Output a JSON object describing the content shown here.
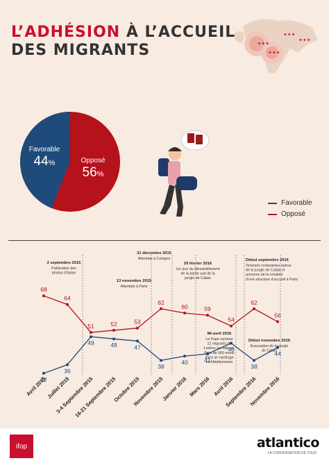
{
  "title": {
    "line1_a": "L’ADHÉSION",
    "line1_b": " À L’ACCUEIL",
    "line2": "DES MIGRANTS"
  },
  "pie": {
    "favorable_label": "Favorable",
    "favorable_value": "44",
    "favorable_unit": "%",
    "oppose_label": "Opposé",
    "oppose_value": "56",
    "oppose_unit": "%",
    "colors": {
      "favorable": "#1e4b7a",
      "oppose": "#b5121b"
    }
  },
  "legend": {
    "favorable": "Favorable",
    "oppose": "Opposé"
  },
  "chart_data": {
    "type": "line",
    "categories": [
      "Avril 2015",
      "Juillet 2015",
      "3-4 Septembre 2015",
      "16-21 Septembre 2015",
      "Octobre 2015",
      "Novembre 2015",
      "Janvier 2016",
      "Mars 2016",
      "Avril 2016",
      "Septembre 2016",
      "Novembre 2016"
    ],
    "series": [
      {
        "name": "Favorable",
        "color": "#1e4b7a",
        "values": [
          32,
          36,
          49,
          48,
          47,
          38,
          40,
          41,
          46,
          38,
          44
        ]
      },
      {
        "name": "Opposé",
        "color": "#b5121b",
        "values": [
          68,
          64,
          51,
          52,
          53,
          62,
          60,
          59,
          54,
          62,
          56
        ]
      }
    ],
    "annotations": [
      {
        "title": "2 septembre 2015",
        "text": [
          "Publication des",
          "photos d’Aylan"
        ]
      },
      {
        "title": "13 novembre 2015",
        "text": [
          "Attentats à Paris"
        ]
      },
      {
        "title": "31 décembre 2015",
        "text": [
          "Attentats à Cologne"
        ]
      },
      {
        "title": "29 février 2016",
        "text": [
          "1er jour du démantèlement",
          "de la partie sud de la",
          "jungle de Calais"
        ]
      },
      {
        "title": "Mi-avril 2016",
        "text": [
          "Le Pape ramène",
          "12 migrants de",
          "Lesbos au Vatican.",
          "Près de 500 morts",
          "dans un naufrage",
          "en Méditerranée"
        ]
      },
      {
        "title": "Début septembre 2016",
        "text": [
          "Tensions croissantes autour",
          "de la jungle de Calais et",
          "annonce de la création",
          "d’une structure d’accueil à Paris"
        ]
      },
      {
        "title": "Début novembre 2016",
        "text": [
          "Évacuation de la jungle",
          "de Calais"
        ]
      }
    ]
  },
  "footer": {
    "ifop": "ifop",
    "brand": "atlantico",
    "brand_sub": "LA CONVERSATION DE TOUS"
  }
}
